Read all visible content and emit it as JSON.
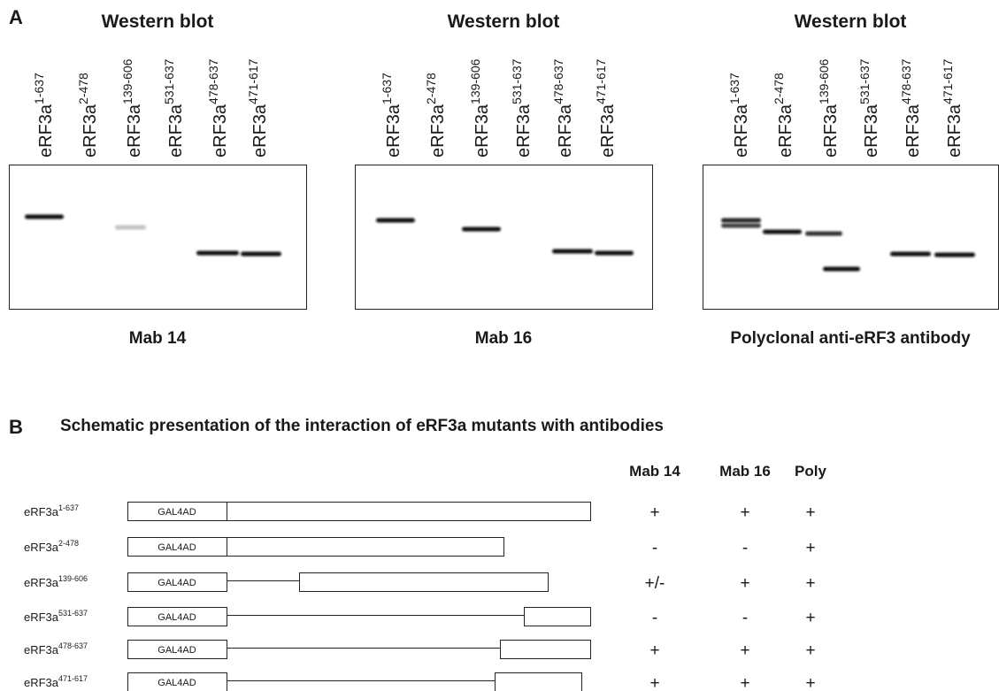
{
  "panel_a": {
    "label": "A",
    "lanes": [
      {
        "name": "eRF3a",
        "range": "1-637"
      },
      {
        "name": "eRF3a",
        "range": "2-478"
      },
      {
        "name": "eRF3a",
        "range": "139-606"
      },
      {
        "name": "eRF3a",
        "range": "531-637"
      },
      {
        "name": "eRF3a",
        "range": "478-637"
      },
      {
        "name": "eRF3a",
        "range": "471-617"
      }
    ],
    "blots": [
      {
        "title": "Western blot",
        "caption": "Mab 14"
      },
      {
        "title": "Western blot",
        "caption": "Mab 16"
      },
      {
        "title": "Western blot",
        "caption": "Polyclonal anti-eRF3 antibody"
      }
    ]
  },
  "panel_b": {
    "label": "B",
    "title": "Schematic presentation of the interaction of eRF3a mutants with antibodies",
    "columns": [
      "Mab 14",
      "Mab 16",
      "Poly"
    ],
    "rows": [
      {
        "name": "eRF3a",
        "range": "1-637",
        "tag": "GAL4AD",
        "results": [
          "+",
          "+",
          "+"
        ]
      },
      {
        "name": "eRF3a",
        "range": "2-478",
        "tag": "GAL4AD",
        "results": [
          "-",
          "-",
          "+"
        ]
      },
      {
        "name": "eRF3a",
        "range": "139-606",
        "tag": "GAL4AD",
        "results": [
          "+/-",
          "+",
          "+"
        ]
      },
      {
        "name": "eRF3a",
        "range": "531-637",
        "tag": "GAL4AD",
        "results": [
          "-",
          "-",
          "+"
        ]
      },
      {
        "name": "eRF3a",
        "range": "478-637",
        "tag": "GAL4AD",
        "results": [
          "+",
          "+",
          "+"
        ]
      },
      {
        "name": "eRF3a",
        "range": "471-617",
        "tag": "GAL4AD",
        "results": [
          "+",
          "+",
          "+"
        ]
      }
    ]
  }
}
